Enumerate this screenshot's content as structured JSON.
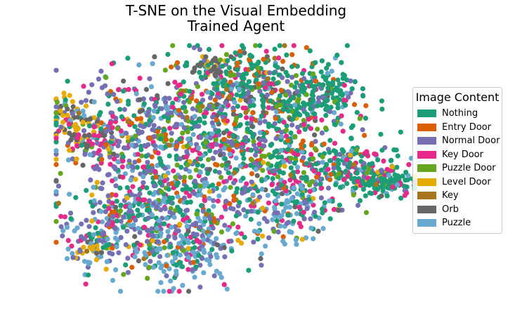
{
  "chart_data": {
    "type": "scatter",
    "title_lines": [
      "T-SNE on the Visual Embedding",
      "Trained Agent"
    ],
    "xlabel": "",
    "ylabel": "",
    "axes_visible": false,
    "grid": false,
    "legend_placement": "right",
    "legend_title": "Image Content",
    "series": [
      {
        "name": "Nothing",
        "color": "#1b9e77"
      },
      {
        "name": "Entry Door",
        "color": "#d95f02"
      },
      {
        "name": "Normal Door",
        "color": "#7570b3"
      },
      {
        "name": "Key Door",
        "color": "#e7298a"
      },
      {
        "name": "Puzzle Door",
        "color": "#66a61e"
      },
      {
        "name": "Level Door",
        "color": "#e6ab02"
      },
      {
        "name": "Key",
        "color": "#a6761d"
      },
      {
        "name": "Orb",
        "color": "#666666"
      },
      {
        "name": "Puzzle",
        "color": "#67a9cf"
      }
    ]
  }
}
